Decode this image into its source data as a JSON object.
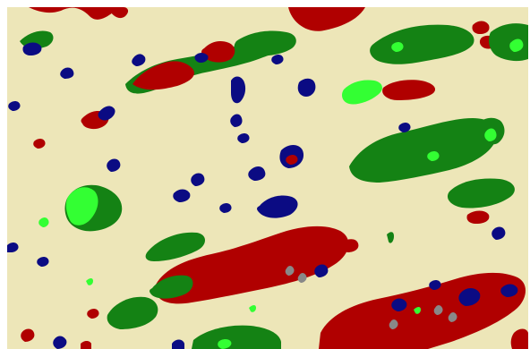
{
  "map": {
    "type": "classified-raster",
    "colors": {
      "background": "#ede6b8",
      "dark_green": "#148214",
      "red": "#b00000",
      "navy": "#0b0b83",
      "bright_green": "#33ff33",
      "gray": "#888888"
    }
  }
}
